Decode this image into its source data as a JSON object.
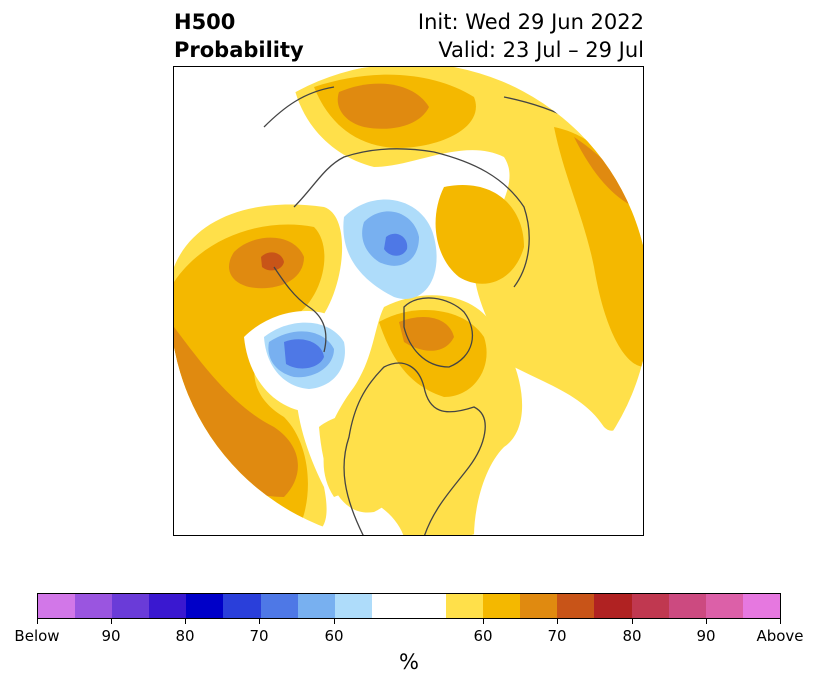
{
  "title": {
    "left_line1": "H500",
    "left_line2": "Probability",
    "right_line1": "Init: Wed 29 Jun 2022",
    "right_line2": "Valid: 23 Jul – 29 Jul"
  },
  "colorbar": {
    "colors": [
      "#d277e8",
      "#9a55e0",
      "#6a3bd8",
      "#3a18d0",
      "#0000c8",
      "#2a3fda",
      "#4e78e6",
      "#78b0f0",
      "#aedcfa",
      "#ffffff",
      "#ffe04a",
      "#f4b800",
      "#e08a10",
      "#c85418",
      "#b02222",
      "#c03850",
      "#cc4a80",
      "#dc60a8",
      "#e678e0"
    ],
    "tick_labels": [
      "Below",
      "90",
      "80",
      "70",
      "60",
      "60",
      "70",
      "80",
      "90",
      "Above"
    ],
    "unit": "%"
  },
  "map": {
    "projection": "north-polar-stereographic",
    "colors": {
      "ocean_bg": "#ffffff",
      "above_60": "#ffe04a",
      "above_65": "#f4b800",
      "above_70": "#e08a10",
      "above_75": "#c85418",
      "below_60": "#aedcfa",
      "below_65": "#78b0f0",
      "below_70": "#4e78e6",
      "coastline": "#444444"
    }
  }
}
